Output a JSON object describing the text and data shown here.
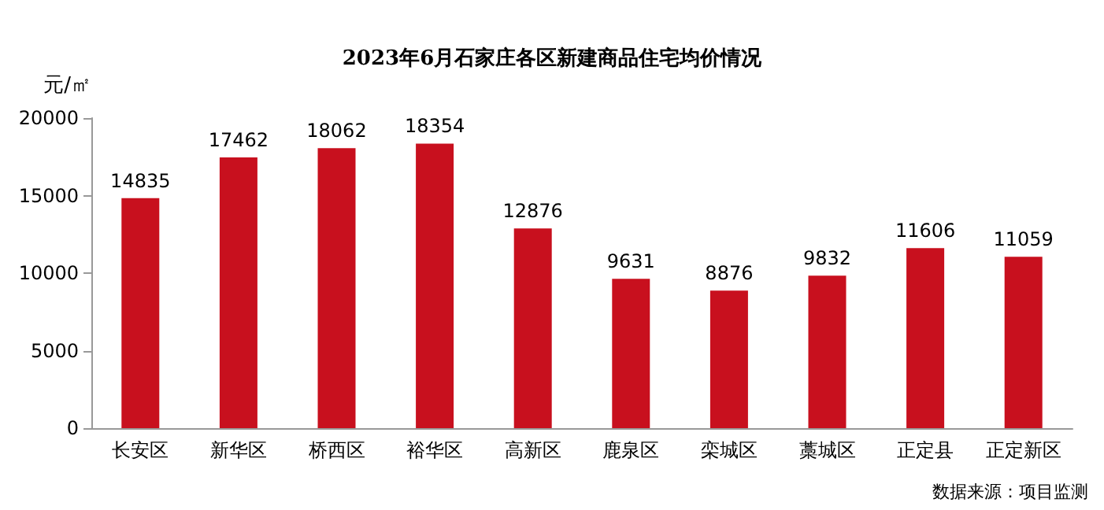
{
  "chart_data": {
    "type": "bar",
    "title": "2023年6月石家庄各区新建商品住宅均价情况",
    "ylabel": "元/㎡",
    "categories": [
      "长安区",
      "新华区",
      "桥西区",
      "裕华区",
      "高新区",
      "鹿泉区",
      "栾城区",
      "藁城区",
      "正定县",
      "正定新区"
    ],
    "values": [
      14835,
      17462,
      18062,
      18354,
      12876,
      9631,
      8876,
      9832,
      11606,
      11059
    ],
    "color": "#c8101e",
    "ylim": [
      0,
      20000
    ],
    "yticks": [
      0,
      5000,
      10000,
      15000,
      20000
    ],
    "grid": false,
    "data_labels": true,
    "annotations": [
      "数据来源：项目监测"
    ]
  }
}
